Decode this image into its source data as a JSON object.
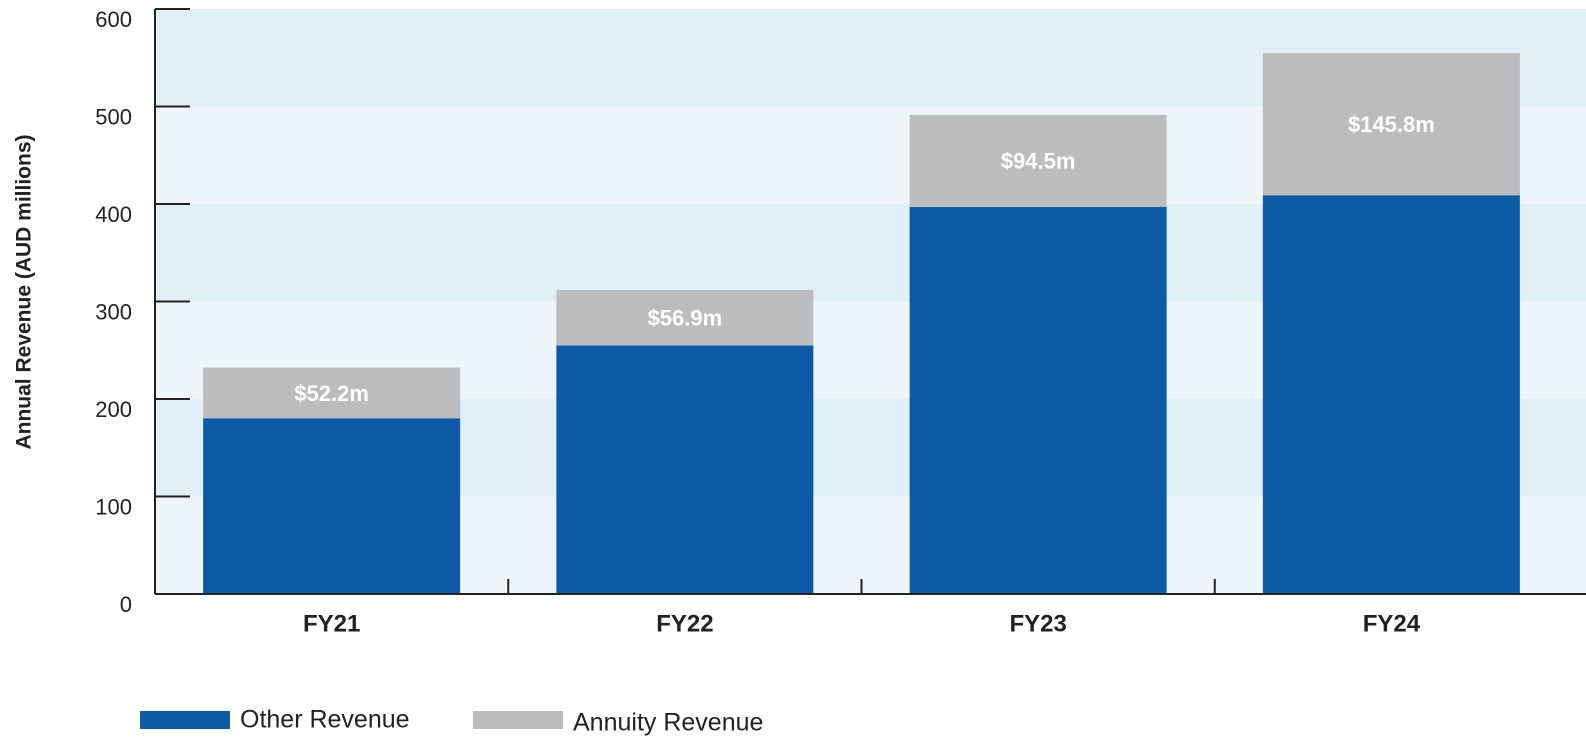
{
  "chart_data": {
    "type": "stacked_bar",
    "y_axis_label": "Annual Revenue (AUD millions)",
    "categories": [
      "FY21",
      "FY22",
      "FY23",
      "FY24"
    ],
    "series": [
      {
        "name": "Other Revenue",
        "color": "#0f5aa6",
        "values": [
          180,
          255,
          397,
          409
        ]
      },
      {
        "name": "Annuity Revenue",
        "color": "#bbbcbe",
        "values": [
          52.2,
          56.9,
          94.5,
          145.8
        ],
        "value_labels": [
          "$52.2m",
          "$56.9m",
          "$94.5m",
          "$145.8m"
        ]
      }
    ],
    "ylim": [
      0,
      600
    ],
    "yticks": [
      0,
      100,
      200,
      300,
      400,
      500,
      600
    ],
    "grid": true
  }
}
